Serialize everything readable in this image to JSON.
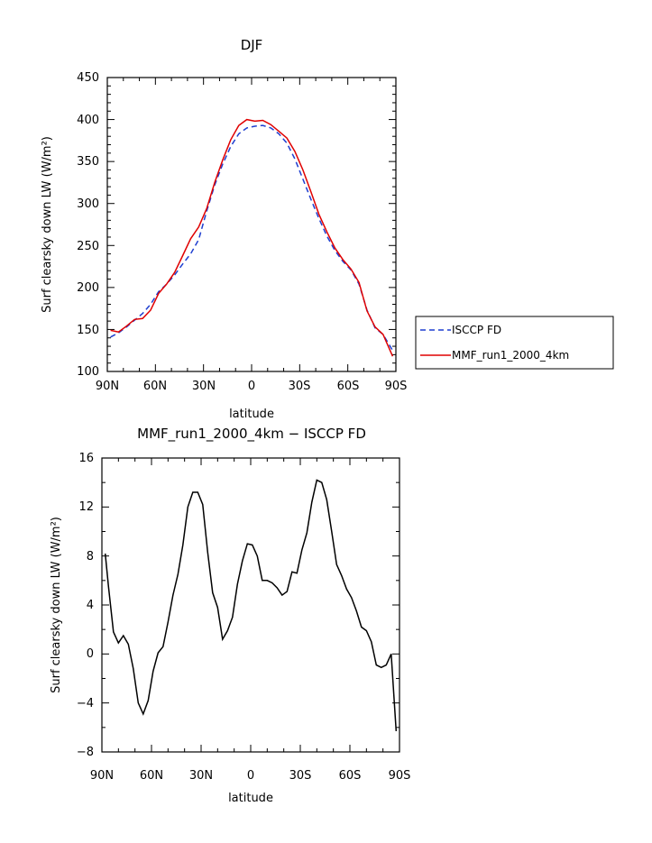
{
  "chart_data": [
    {
      "type": "line",
      "title": "DJF",
      "xlabel": "latitude",
      "ylabel": "Surf clearsky down LW (W/m²)",
      "x_tick_labels": [
        "90N",
        "60N",
        "30N",
        "0",
        "30S",
        "60S",
        "90S"
      ],
      "x_ticks": [
        -90,
        -60,
        -30,
        0,
        30,
        60,
        90
      ],
      "xlim": [
        -90,
        90
      ],
      "ylim": [
        100,
        450
      ],
      "y_ticks": [
        100,
        150,
        200,
        250,
        300,
        350,
        400,
        450
      ],
      "y_tick_labels": [
        "100",
        "150",
        "200",
        "250",
        "300",
        "350",
        "400",
        "450"
      ],
      "grid": false,
      "legend_position": "right",
      "series": [
        {
          "name": "ISCCP FD",
          "color": "#1f3fd0",
          "dash": "dashed",
          "x": [
            -88,
            -83,
            -78,
            -73,
            -68,
            -63,
            -58,
            -53,
            -48,
            -43,
            -38,
            -33,
            -28,
            -23,
            -18,
            -13,
            -8,
            -3,
            2,
            7,
            12,
            17,
            22,
            27,
            32,
            37,
            42,
            47,
            52,
            57,
            62,
            67,
            72,
            77,
            82,
            88
          ],
          "y": [
            141,
            146,
            153,
            161,
            169,
            180,
            195,
            204,
            215,
            228,
            240,
            257,
            291,
            322,
            347,
            368,
            383,
            390,
            392,
            393,
            390,
            383,
            372,
            353,
            329,
            305,
            282,
            261,
            244,
            231,
            221,
            204,
            173,
            152,
            144,
            125
          ]
        },
        {
          "name": "MMF_run1_2000_4km",
          "color": "#e00000",
          "dash": "solid",
          "x": [
            -88,
            -83,
            -78,
            -73,
            -68,
            -63,
            -58,
            -53,
            -48,
            -43,
            -38,
            -33,
            -28,
            -23,
            -18,
            -13,
            -8,
            -3,
            2,
            7,
            12,
            17,
            22,
            27,
            32,
            37,
            42,
            47,
            52,
            57,
            62,
            67,
            72,
            77,
            82,
            88
          ],
          "y": [
            149,
            147,
            154,
            162,
            163,
            173,
            193,
            204,
            218,
            238,
            258,
            272,
            294,
            325,
            352,
            376,
            393,
            400,
            398,
            399,
            394,
            386,
            378,
            362,
            340,
            314,
            287,
            266,
            247,
            233,
            222,
            206,
            172,
            153,
            144,
            118
          ]
        }
      ]
    },
    {
      "type": "line",
      "title": "MMF_run1_2000_4km − ISCCP FD",
      "xlabel": "latitude",
      "ylabel": "Surf clearsky down LW (W/m²)",
      "x_tick_labels": [
        "90N",
        "60N",
        "30N",
        "0",
        "30S",
        "60S",
        "90S"
      ],
      "x_ticks": [
        -90,
        -60,
        -30,
        0,
        30,
        60,
        90
      ],
      "xlim": [
        -90,
        90
      ],
      "ylim": [
        -8,
        16
      ],
      "y_ticks": [
        -8,
        -4,
        0,
        4,
        8,
        12,
        16
      ],
      "y_tick_labels": [
        "−8",
        "−4",
        "0",
        "4",
        "8",
        "12",
        "16"
      ],
      "grid": false,
      "series": [
        {
          "color": "#000000",
          "dash": "solid",
          "x": [
            -88,
            -86,
            -83,
            -80,
            -77,
            -74,
            -71,
            -68,
            -65,
            -62,
            -59,
            -56,
            -53,
            -50,
            -47,
            -44,
            -41,
            -38,
            -35,
            -32,
            -29,
            -26,
            -23,
            -20,
            -17,
            -14,
            -11,
            -8,
            -5,
            -2,
            1,
            4,
            7,
            10,
            13,
            16,
            19,
            22,
            25,
            28,
            31,
            34,
            37,
            40,
            43,
            46,
            49,
            52,
            55,
            58,
            61,
            64,
            67,
            70,
            73,
            76,
            79,
            82,
            85,
            88
          ],
          "y": [
            8.2,
            5.5,
            1.8,
            0.9,
            1.5,
            0.8,
            -1.2,
            -4.0,
            -4.9,
            -3.8,
            -1.4,
            0.1,
            0.6,
            2.6,
            4.8,
            6.5,
            8.9,
            12.0,
            13.2,
            13.2,
            12.2,
            8.3,
            5.0,
            3.8,
            1.2,
            1.9,
            3.0,
            5.7,
            7.6,
            9.0,
            8.9,
            8.0,
            6.0,
            6.0,
            5.8,
            5.4,
            4.8,
            5.1,
            6.7,
            6.6,
            8.5,
            9.9,
            12.4,
            14.2,
            14.0,
            12.6,
            10.0,
            7.3,
            6.4,
            5.3,
            4.6,
            3.5,
            2.2,
            1.9,
            1.0,
            -0.9,
            -1.1,
            -0.9,
            0.0,
            -6.3
          ]
        }
      ]
    }
  ]
}
